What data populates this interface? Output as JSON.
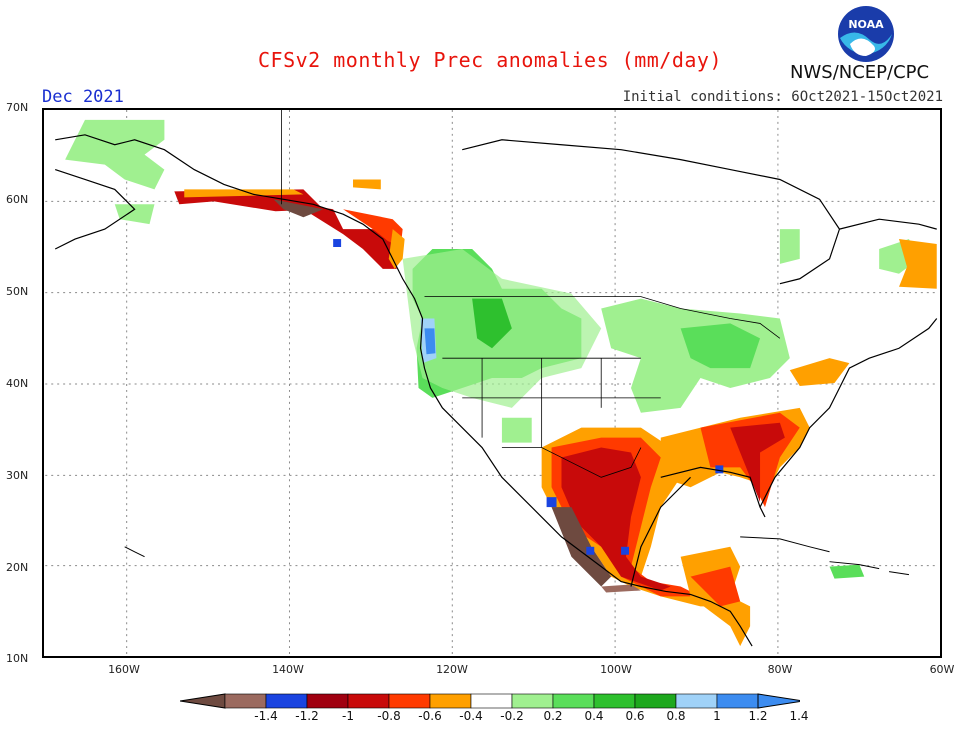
{
  "header": {
    "title": "CFSv2 monthly Prec anomalies (mm/day)",
    "month": "Dec 2021",
    "initial_conditions": "Initial conditions: 6Oct2021-15Oct2021",
    "agency": "NWS/NCEP/CPC",
    "logo_text": "NOAA"
  },
  "axes": {
    "lat_labels": [
      "70N",
      "60N",
      "50N",
      "40N",
      "30N",
      "20N",
      "10N"
    ],
    "lon_labels": [
      "160W",
      "140W",
      "120W",
      "100W",
      "80W",
      "60W"
    ]
  },
  "legend": {
    "ticks": [
      "-1.4",
      "-1.2",
      "-1",
      "-0.8",
      "-0.6",
      "-0.4",
      "-0.2",
      "0.2",
      "0.4",
      "0.6",
      "0.8",
      "1",
      "1.2",
      "1.4"
    ],
    "colors": [
      "#9b6a5f",
      "#1a44e0",
      "#a00010",
      "#c80a0a",
      "#ff3a00",
      "#ffa000",
      "#ffffff",
      "#a0f090",
      "#5ade5a",
      "#2ec02e",
      "#1ea81e",
      "#a0d2f8",
      "#3c8cf0"
    ],
    "left_end_color": "#6e4a40",
    "right_end_color": "#3c8cf0"
  },
  "map_colors": {
    "dry_strong": "#c80a0a",
    "dry_moderate": "#ff3a00",
    "dry_light": "#ffa000",
    "dry_extreme": "#6e4a40",
    "wet_light": "#a0f090",
    "wet_moderate": "#5ade5a",
    "wet_strong": "#2ec02e",
    "wet_blue": "#3c8cf0",
    "wet_lightblue": "#a0d2f8",
    "blue_spot": "#1a44e0"
  }
}
